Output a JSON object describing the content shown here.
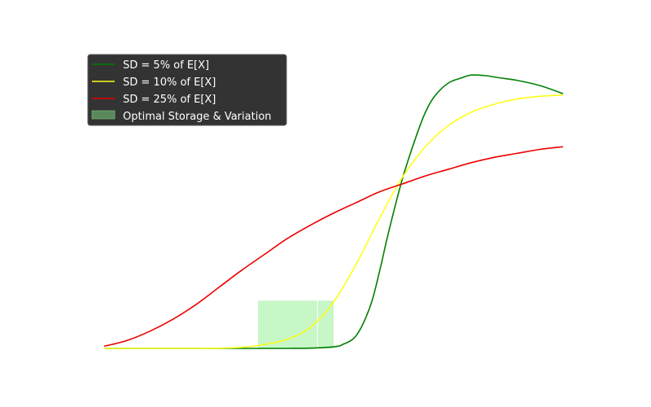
{
  "chart_data": {
    "type": "line",
    "title": "",
    "xlabel": "",
    "ylabel": "",
    "axes_visible": false,
    "grid": false,
    "legend_placement": "upper-left",
    "legend_style": "dark",
    "xlim": [
      0,
      1
    ],
    "ylim": [
      0,
      1
    ],
    "series": [
      {
        "name": "SD = 5% of E[X]",
        "color": "#008000",
        "x": [
          0,
          0.1,
          0.2,
          0.3,
          0.4,
          0.45,
          0.5,
          0.52,
          0.55,
          0.58,
          0.6,
          0.62,
          0.65,
          0.68,
          0.7,
          0.72,
          0.75,
          0.78,
          0.8,
          0.83,
          0.86,
          0.9,
          0.95,
          1.0
        ],
        "y": [
          0.0,
          0.0,
          0.0,
          0.0,
          0.0,
          0.001,
          0.006,
          0.015,
          0.05,
          0.16,
          0.29,
          0.44,
          0.64,
          0.8,
          0.89,
          0.95,
          1.0,
          1.02,
          1.03,
          1.028,
          1.02,
          1.01,
          0.99,
          0.96
        ]
      },
      {
        "name": "SD = 10% of E[X]",
        "color": "#ffff1a",
        "x": [
          0,
          0.1,
          0.2,
          0.25,
          0.3,
          0.35,
          0.4,
          0.45,
          0.5,
          0.55,
          0.6,
          0.65,
          0.7,
          0.75,
          0.8,
          0.85,
          0.9,
          0.95,
          1.0
        ],
        "y": [
          0.0,
          0.0,
          0.0,
          0.001,
          0.004,
          0.015,
          0.035,
          0.08,
          0.175,
          0.32,
          0.49,
          0.645,
          0.76,
          0.84,
          0.89,
          0.92,
          0.94,
          0.95,
          0.955
        ]
      },
      {
        "name": "SD = 25% of E[X]",
        "color": "#ee0000",
        "x": [
          0,
          0.05,
          0.1,
          0.15,
          0.2,
          0.25,
          0.3,
          0.35,
          0.4,
          0.45,
          0.5,
          0.55,
          0.6,
          0.65,
          0.7,
          0.75,
          0.8,
          0.85,
          0.9,
          0.95,
          1.0
        ],
        "y": [
          0.008,
          0.03,
          0.065,
          0.11,
          0.165,
          0.23,
          0.295,
          0.355,
          0.415,
          0.465,
          0.51,
          0.55,
          0.59,
          0.62,
          0.65,
          0.675,
          0.7,
          0.72,
          0.735,
          0.75,
          0.76
        ]
      }
    ],
    "shaded_region": {
      "name": "Optimal Storage & Variation",
      "color": "#90ee90",
      "x_range": [
        0.335,
        0.5
      ],
      "y_range": [
        0,
        0.18
      ],
      "divider_x": 0.465
    }
  }
}
